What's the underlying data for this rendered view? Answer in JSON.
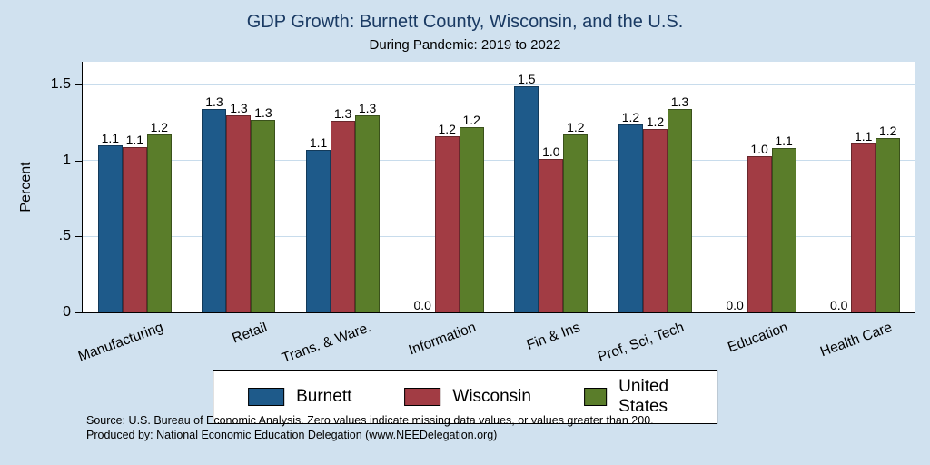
{
  "notes": {
    "line1": "Source: U.S. Bureau of Economic Analysis. Zero values indicate missing data values, or values greater than 200.",
    "line2": "Produced by: National Economic Education Delegation (www.NEEDelegation.org)"
  },
  "colors": {
    "background": "#d0e1ef",
    "plot_background": "#ffffff",
    "title_text": "#1a3a63",
    "gridline": "#c8dcec",
    "axis": "#000000",
    "burnett": "#1e5a8a",
    "wisconsin": "#a23c44",
    "united_states": "#5a7d2a"
  },
  "chart_data": {
    "type": "bar",
    "title": "GDP Growth: Burnett County, Wisconsin, and the U.S.",
    "subtitle": "During Pandemic: 2019 to 2022",
    "xlabel": "",
    "ylabel": "Percent",
    "ylim": [
      0,
      1.65
    ],
    "grid": true,
    "legend_position": "bottom",
    "yticks": [
      {
        "value": 0,
        "label": "0"
      },
      {
        "value": 0.5,
        "label": ".5"
      },
      {
        "value": 1,
        "label": "1"
      },
      {
        "value": 1.5,
        "label": "1.5"
      }
    ],
    "categories": [
      "Manufacturing",
      "Retail",
      "Trans. & Ware.",
      "Information",
      "Fin & Ins",
      "Prof, Sci, Tech",
      "Education",
      "Health Care"
    ],
    "series": [
      {
        "name": "Burnett",
        "color": "#1e5a8a",
        "values": [
          1.1,
          1.34,
          1.07,
          0,
          1.49,
          1.24,
          0,
          0
        ],
        "labels": [
          "1.1",
          "1.3",
          "1.1",
          "0.0",
          "1.5",
          "1.2",
          "0.0",
          "0.0"
        ]
      },
      {
        "name": "Wisconsin",
        "color": "#a23c44",
        "values": [
          1.09,
          1.3,
          1.26,
          1.16,
          1.01,
          1.21,
          1.03,
          1.11
        ],
        "labels": [
          "1.1",
          "1.3",
          "1.3",
          "1.2",
          "1.0",
          "1.2",
          "1.0",
          "1.1"
        ]
      },
      {
        "name": "United States",
        "color": "#5a7d2a",
        "values": [
          1.17,
          1.27,
          1.3,
          1.22,
          1.17,
          1.34,
          1.08,
          1.15
        ],
        "labels": [
          "1.2",
          "1.3",
          "1.3",
          "1.2",
          "1.2",
          "1.3",
          "1.1",
          "1.2"
        ]
      }
    ]
  }
}
